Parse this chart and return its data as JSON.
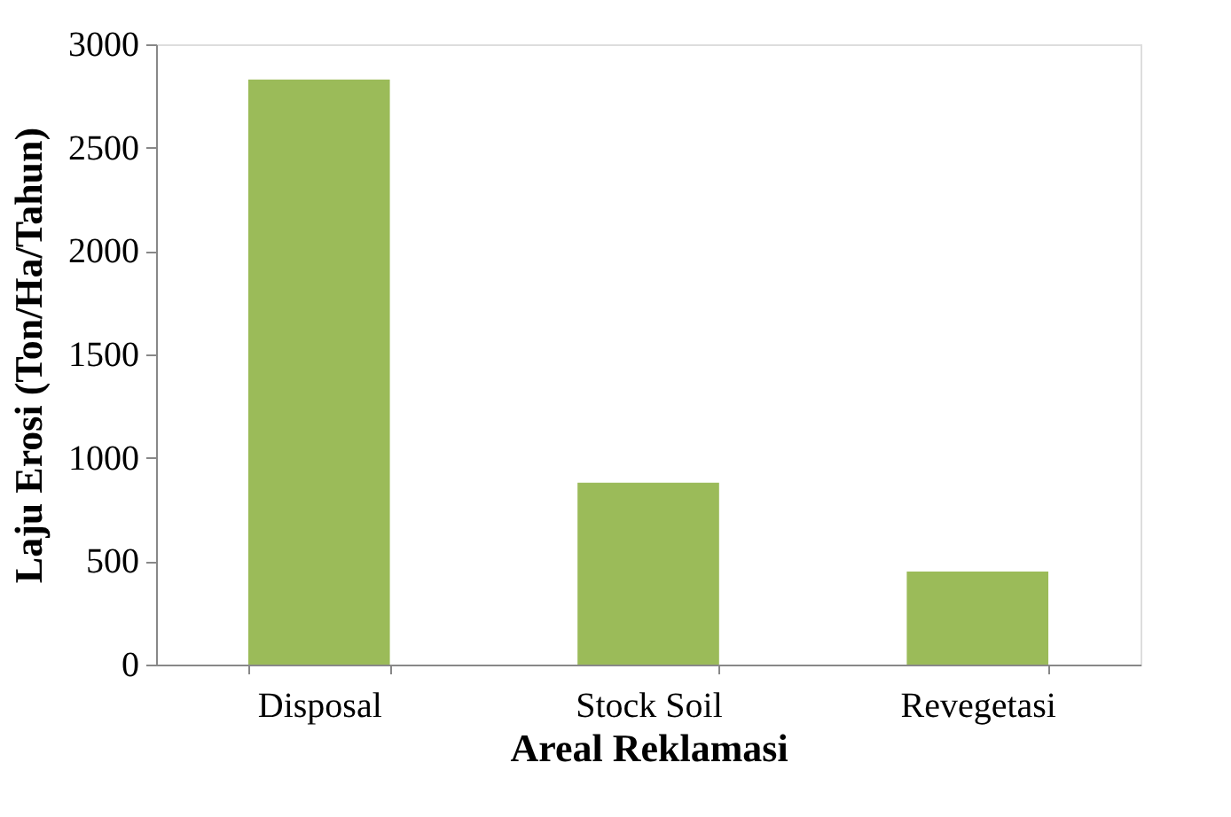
{
  "chart_data": {
    "type": "bar",
    "xlabel": "Areal Reklamasi",
    "ylabel": "Laju Erosi (Ton/Ha/Tahun)",
    "categories": [
      "Disposal",
      "Stock Soil",
      "Revegetasi"
    ],
    "values": [
      2830,
      880,
      450
    ],
    "color": "#9bbb59",
    "ylim": [
      0,
      3000
    ],
    "yticks": [
      0,
      500,
      1000,
      1500,
      2000,
      2500,
      3000
    ],
    "grid": false
  }
}
